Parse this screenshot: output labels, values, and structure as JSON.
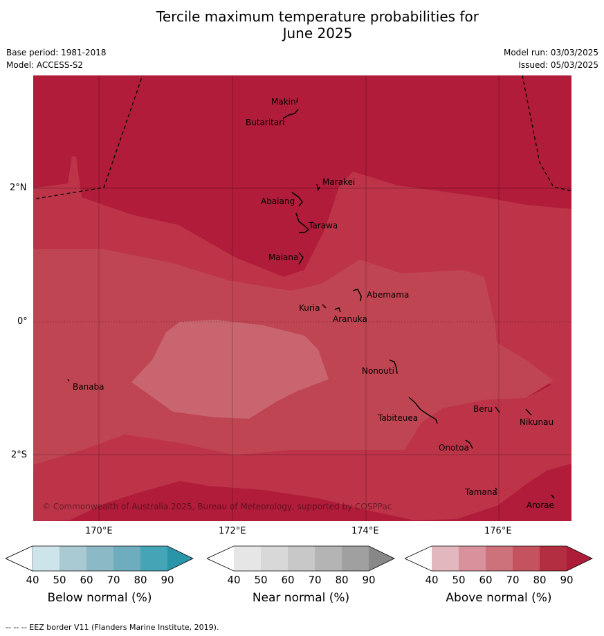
{
  "title_line1": "Tercile maximum temperature probabilities for",
  "title_line2": "June 2025",
  "base_period": "Base period: 1981-2018",
  "model": "Model: ACCESS-S2",
  "model_run": "Model run: 03/03/2025",
  "issued": "Issued: 05/03/2025",
  "copyright": "© Commonwealth of Australia 2025, Bureau of Meteorology, supported by COSPPac",
  "lat_labels": [
    "2°N",
    "0°",
    "2°S"
  ],
  "lon_labels": [
    "170°E",
    "172°E",
    "174°E",
    "176°E"
  ],
  "places": [
    "Makin",
    "Butaritari",
    "Marakei",
    "Abaiang",
    "Tarawa",
    "Maiana",
    "Abemama",
    "Kuria",
    "Aranuka",
    "Nonouti",
    "Banaba",
    "Tabiteuea",
    "Beru",
    "Nikunau",
    "Onotoa",
    "Tamana",
    "Arorae"
  ],
  "colorbars": [
    {
      "label": "Below normal (%)",
      "ticks": [
        "40",
        "50",
        "60",
        "70",
        "80",
        "90"
      ],
      "colors": [
        "#ffffff",
        "#cde4ea",
        "#a9cad2",
        "#8bb9c5",
        "#6eadbd",
        "#45a4b6",
        "#2a94a8"
      ]
    },
    {
      "label": "Near normal (%)",
      "ticks": [
        "40",
        "50",
        "60",
        "70",
        "80",
        "90"
      ],
      "colors": [
        "#ffffff",
        "#e6e6e6",
        "#d8d8d8",
        "#c8c8c8",
        "#b4b4b4",
        "#a0a0a0",
        "#888888"
      ]
    },
    {
      "label": "Above normal (%)",
      "ticks": [
        "40",
        "50",
        "60",
        "70",
        "80",
        "90"
      ],
      "colors": [
        "#ffffff",
        "#e2b7be",
        "#d9929b",
        "#cd717b",
        "#c5535f",
        "#b42e41",
        "#ad1d3a"
      ]
    }
  ],
  "footer": "--  --  -- EEZ border V11 (Flanders Marine Institute, 2019)."
}
